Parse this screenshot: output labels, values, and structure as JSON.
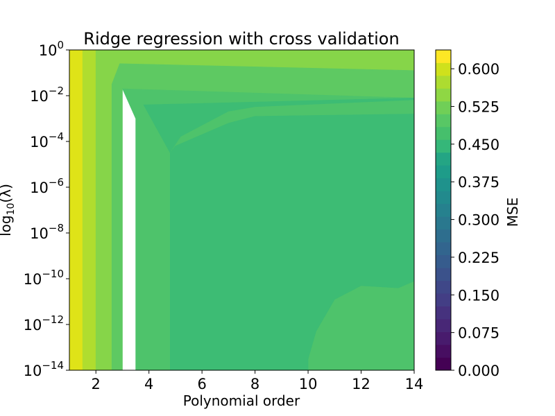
{
  "chart_data": {
    "type": "heatmap",
    "title": "Ridge regression with cross validation",
    "xlabel": "Polynomial order",
    "ylabel": "log10(λ)",
    "colorbar_label": "MSE",
    "colormap": "viridis",
    "xlim": [
      1,
      14
    ],
    "ylim_log10": [
      -14,
      0
    ],
    "x_ticks": [
      2,
      4,
      6,
      8,
      10,
      12,
      14
    ],
    "x_tick_labels": [
      "2",
      "4",
      "6",
      "8",
      "10",
      "12",
      "14"
    ],
    "y_ticks_log10": [
      0,
      -2,
      -4,
      -6,
      -8,
      -10,
      -12,
      -14
    ],
    "y_tick_labels": [
      {
        "base": "10",
        "exp": "0"
      },
      {
        "base": "10",
        "exp": "−2"
      },
      {
        "base": "10",
        "exp": "−4"
      },
      {
        "base": "10",
        "exp": "−6"
      },
      {
        "base": "10",
        "exp": "−8"
      },
      {
        "base": "10",
        "exp": "−10"
      },
      {
        "base": "10",
        "exp": "−12"
      },
      {
        "base": "10",
        "exp": "−14"
      }
    ],
    "colorbar_ticks": [
      0.0,
      0.075,
      0.15,
      0.225,
      0.3,
      0.375,
      0.45,
      0.525,
      0.6
    ],
    "colorbar_tick_labels": [
      "0.000",
      "0.075",
      "0.150",
      "0.225",
      "0.300",
      "0.375",
      "0.450",
      "0.525",
      "0.600"
    ],
    "colorbar_range": [
      0.0,
      0.6375
    ],
    "contour_level_step": 0.0375,
    "colorbar_levels": [
      "#440154",
      "#470e61",
      "#481b6d",
      "#482776",
      "#46327e",
      "#433e85",
      "#3f4788",
      "#3b528b",
      "#365c8d",
      "#32658e",
      "#2e6e8e",
      "#2a788e",
      "#26818e",
      "#228a8d",
      "#1f928c",
      "#1e9c89",
      "#24a584",
      "#35b779",
      "#46bf6c",
      "#58c765",
      "#70cf57",
      "#8fd744",
      "#addc30",
      "#cfe11c",
      "#fde725"
    ],
    "filled_contours": [
      {
        "mse_range": [
          0.6,
          0.6375
        ],
        "color": "#dfe318",
        "region": [
          [
            1,
            0
          ],
          [
            1.5,
            0
          ],
          [
            1.5,
            -14
          ],
          [
            1,
            -14
          ]
        ]
      },
      {
        "mse_range": [
          0.5625,
          0.6
        ],
        "color": "#b0dd2f",
        "region": [
          [
            1.5,
            0
          ],
          [
            2,
            0
          ],
          [
            2,
            -14
          ],
          [
            1.5,
            -14
          ]
        ]
      },
      {
        "mse_range": [
          0.525,
          0.5625
        ],
        "color": "#86d549",
        "region": [
          [
            2,
            0
          ],
          [
            14,
            0
          ],
          [
            14,
            -0.9
          ],
          [
            2.9,
            -0.6
          ],
          [
            2.6,
            -1.5
          ],
          [
            2.6,
            -14
          ],
          [
            2,
            -14
          ]
        ]
      },
      {
        "mse_range": [
          0.4875,
          0.525
        ],
        "color": "#5ec962",
        "region": [
          [
            2.6,
            -1.5
          ],
          [
            2.9,
            -0.6
          ],
          [
            14,
            -0.9
          ],
          [
            14,
            -2.1
          ],
          [
            3,
            -1.7
          ],
          [
            3,
            -14
          ],
          [
            2.6,
            -14
          ]
        ]
      },
      {
        "mse_range": [
          0.45,
          0.4875
        ],
        "color": "#4ec36b",
        "region": [
          [
            3,
            -1.7
          ],
          [
            14,
            -2.1
          ],
          [
            14,
            -14
          ],
          [
            3.5,
            -14
          ],
          [
            3.5,
            -3
          ]
        ]
      },
      {
        "mse_range": [
          0.4125,
          0.45
        ],
        "color": "#3dbc74",
        "region": [
          [
            3.8,
            -2.4
          ],
          [
            14,
            -2.1
          ],
          [
            14,
            -10.1
          ],
          [
            13.4,
            -10.4
          ],
          [
            12,
            -10.3
          ],
          [
            11,
            -10.9
          ],
          [
            10.3,
            -12.3
          ],
          [
            10,
            -13.5
          ],
          [
            10,
            -14
          ],
          [
            4.8,
            -14
          ],
          [
            4.8,
            -4.5
          ]
        ]
      },
      {
        "mse_range": [
          0.45,
          0.4875
        ],
        "color": "#4ec36b",
        "region": [
          [
            4.8,
            -4.5
          ],
          [
            5.2,
            -3.8
          ],
          [
            7,
            -2.7
          ],
          [
            8,
            -2.5
          ],
          [
            14,
            -2.2
          ],
          [
            14,
            -10.1
          ],
          [
            13.4,
            -10.4
          ],
          [
            12,
            -10.3
          ],
          [
            11,
            -10.9
          ],
          [
            10.3,
            -12.3
          ],
          [
            10,
            -13.5
          ],
          [
            10,
            -14
          ],
          [
            4.8,
            -14
          ]
        ]
      },
      {
        "mse_range": [
          0.4125,
          0.45
        ],
        "color": "#3dbc74",
        "region": [
          [
            5,
            -4.2
          ],
          [
            7,
            -3.2
          ],
          [
            8,
            -2.9
          ],
          [
            14,
            -2.8
          ],
          [
            14,
            -10.1
          ],
          [
            13.4,
            -10.4
          ],
          [
            12,
            -10.3
          ],
          [
            11,
            -10.9
          ],
          [
            10.3,
            -12.3
          ],
          [
            10,
            -13.5
          ],
          [
            10,
            -14
          ],
          [
            4.8,
            -14
          ],
          [
            4.8,
            -4.5
          ]
        ]
      }
    ]
  }
}
